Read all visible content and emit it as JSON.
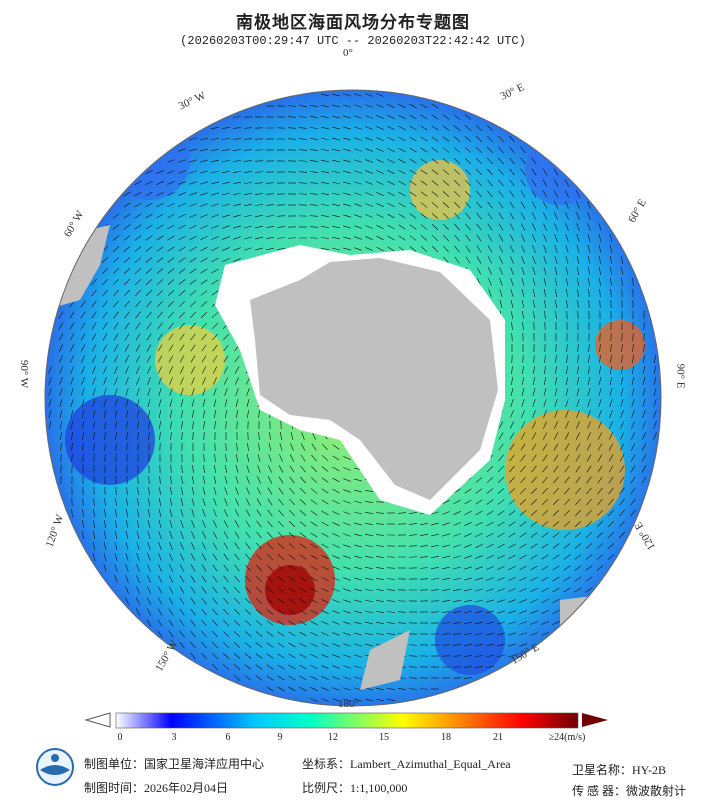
{
  "header": {
    "title": "南极地区海面风场分布专题图",
    "subtitle": "(20260203T00:29:47 UTC -- 20260203T22:42:42 UTC)"
  },
  "map": {
    "projection_label": "Lambert_Azimuthal_Equal_Area",
    "longitude_labels": {
      "lon_0": "0°",
      "lon_30e": "30° E",
      "lon_60e": "60° E",
      "lon_90e": "90° E",
      "lon_120e": "120° E",
      "lon_150e": "150° E",
      "lon_180": "180°",
      "lon_150w": "150° W",
      "lon_120w": "120° W",
      "lon_90w": "90° W",
      "lon_60w": "60° W",
      "lon_30w": "30° W"
    },
    "colors": {
      "land": "#c0c0c0",
      "ice": "#ffffff",
      "arrow": "#111111"
    }
  },
  "colorbar": {
    "ticks": [
      "0",
      "3",
      "6",
      "9",
      "12",
      "15",
      "18",
      "21",
      "≥24(m/s)"
    ],
    "range": [
      0,
      24
    ],
    "unit": "m/s",
    "colors": [
      "#ffffff",
      "#0000ff",
      "#00c8ff",
      "#00ffc8",
      "#ffff00",
      "#ff8000",
      "#ff0000",
      "#700000"
    ]
  },
  "footer": {
    "producer": "制图单位：国家卫星海洋应用中心",
    "date": "制图时间：2026年02月04日",
    "crs": "坐标系：Lambert_Azimuthal_Equal_Area",
    "scale": "比例尺：1:1,100,000",
    "satellite": "卫星名称：HY-2B",
    "sensor": "传 感 器：微波散射计"
  }
}
